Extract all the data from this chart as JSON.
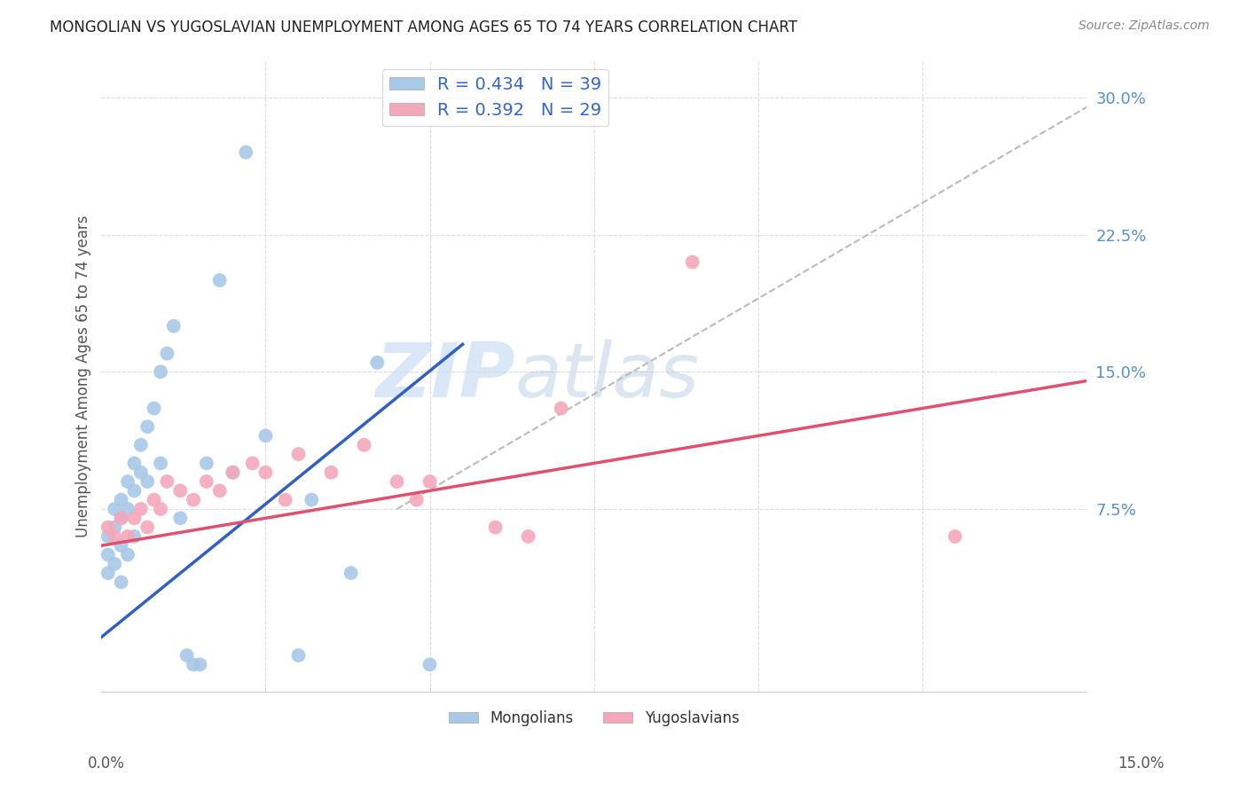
{
  "title": "MONGOLIAN VS YUGOSLAVIAN UNEMPLOYMENT AMONG AGES 65 TO 74 YEARS CORRELATION CHART",
  "source": "Source: ZipAtlas.com",
  "ylabel": "Unemployment Among Ages 65 to 74 years",
  "ylabel_right_ticks": [
    "30.0%",
    "22.5%",
    "15.0%",
    "7.5%"
  ],
  "ylabel_right_vals": [
    0.3,
    0.225,
    0.15,
    0.075
  ],
  "xmin": 0.0,
  "xmax": 0.15,
  "ymin": -0.025,
  "ymax": 0.32,
  "watermark_zip": "ZIP",
  "watermark_atlas": "atlas",
  "legend_mongolians": "Mongolians",
  "legend_yugoslavians": "Yugoslavians",
  "mongolian_color": "#a8c8e8",
  "yugoslavian_color": "#f4a8bc",
  "mongolian_line_color": "#3060C0",
  "yugoslavian_line_color": "#E05070",
  "diagonal_color": "#bbbbbb",
  "R_mongolian": 0.434,
  "N_mongolian": 39,
  "R_yugoslavian": 0.392,
  "N_yugoslavian": 29,
  "mongolian_x": [
    0.001,
    0.001,
    0.001,
    0.002,
    0.002,
    0.002,
    0.003,
    0.003,
    0.003,
    0.003,
    0.004,
    0.004,
    0.004,
    0.005,
    0.005,
    0.005,
    0.006,
    0.006,
    0.007,
    0.007,
    0.008,
    0.009,
    0.009,
    0.01,
    0.011,
    0.012,
    0.013,
    0.014,
    0.015,
    0.016,
    0.018,
    0.02,
    0.022,
    0.025,
    0.03,
    0.032,
    0.038,
    0.042,
    0.05
  ],
  "mongolian_y": [
    0.06,
    0.05,
    0.04,
    0.075,
    0.065,
    0.045,
    0.08,
    0.07,
    0.055,
    0.035,
    0.09,
    0.075,
    0.05,
    0.1,
    0.085,
    0.06,
    0.11,
    0.095,
    0.12,
    0.09,
    0.13,
    0.15,
    0.1,
    0.16,
    0.175,
    0.07,
    -0.005,
    -0.01,
    -0.01,
    0.1,
    0.2,
    0.095,
    0.27,
    0.115,
    -0.005,
    0.08,
    0.04,
    0.155,
    -0.01
  ],
  "yugoslavian_x": [
    0.001,
    0.002,
    0.003,
    0.004,
    0.005,
    0.006,
    0.007,
    0.008,
    0.009,
    0.01,
    0.012,
    0.014,
    0.016,
    0.018,
    0.02,
    0.023,
    0.025,
    0.028,
    0.03,
    0.035,
    0.04,
    0.045,
    0.048,
    0.05,
    0.06,
    0.065,
    0.07,
    0.09,
    0.13
  ],
  "yugoslavian_y": [
    0.065,
    0.06,
    0.07,
    0.06,
    0.07,
    0.075,
    0.065,
    0.08,
    0.075,
    0.09,
    0.085,
    0.08,
    0.09,
    0.085,
    0.095,
    0.1,
    0.095,
    0.08,
    0.105,
    0.095,
    0.11,
    0.09,
    0.08,
    0.09,
    0.065,
    0.06,
    0.13,
    0.21,
    0.06
  ]
}
